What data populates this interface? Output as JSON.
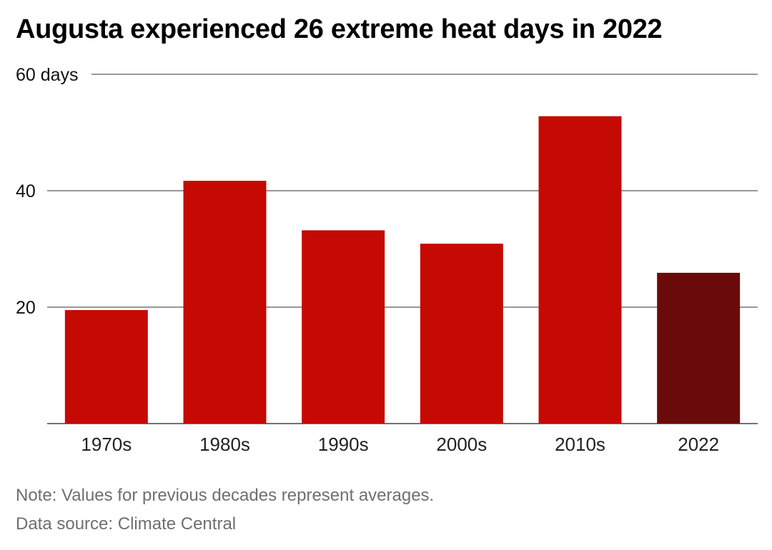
{
  "chart_data": {
    "type": "bar",
    "title": "Augusta experienced 26 extreme heat days in 2022",
    "categories": [
      "1970s",
      "1980s",
      "1990s",
      "2000s",
      "2010s",
      "2022"
    ],
    "values": [
      19.5,
      41.7,
      33.2,
      30.9,
      52.8,
      25.9
    ],
    "bar_colors": [
      "#c40a03",
      "#c40a03",
      "#c40a03",
      "#c40a03",
      "#c40a03",
      "#6b0a0a"
    ],
    "ylim": [
      0,
      60
    ],
    "yticks": [
      {
        "value": 20,
        "label": "20"
      },
      {
        "value": 40,
        "label": "40"
      },
      {
        "value": 60,
        "label": "60 days"
      }
    ],
    "grid": true,
    "xlabel": "",
    "ylabel": ""
  },
  "footer": {
    "note": "Note: Values for previous decades represent averages.",
    "source": "Data source: Climate Central"
  }
}
